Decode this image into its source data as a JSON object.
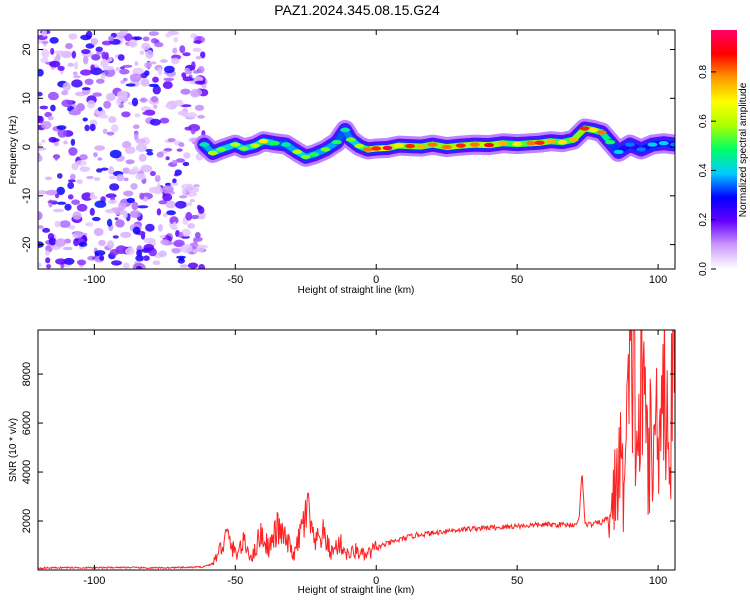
{
  "title": "PAZ1.2024.345.08.15.G24",
  "chart_data": [
    {
      "type": "heatmap",
      "title": "",
      "xlabel": "Height of straight line (km)",
      "ylabel": "Frequency (Hz)",
      "xlim": [
        -120,
        106
      ],
      "ylim": [
        -25,
        24
      ],
      "xticks": [
        -100,
        -50,
        0,
        50,
        100
      ],
      "yticks": [
        -20,
        -10,
        0,
        10,
        20
      ],
      "colorbar": {
        "label": "Normalized spectral amplitude",
        "range": [
          0,
          0.97
        ],
        "ticks": [
          0.0,
          0.2,
          0.4,
          0.6,
          0.8
        ],
        "colors": [
          "#ffffff",
          "#cc99ff",
          "#6600ff",
          "#0000ff",
          "#00ccff",
          "#00ff66",
          "#aaff00",
          "#ffff00",
          "#ff9900",
          "#ff0000",
          "#ff0066"
        ]
      },
      "noise_region": {
        "x": [
          -120,
          -61
        ],
        "y": [
          -25,
          24
        ],
        "amplitude": [
          0.05,
          0.3
        ]
      },
      "ridge": [
        [
          -61,
          0.5,
          0.45
        ],
        [
          -58,
          -1.2,
          0.6
        ],
        [
          -55,
          -0.5,
          0.55
        ],
        [
          -50,
          0.5,
          0.6
        ],
        [
          -47,
          -0.3,
          0.55
        ],
        [
          -43,
          0.3,
          0.6
        ],
        [
          -40,
          1.2,
          0.7
        ],
        [
          -36,
          0.8,
          0.5
        ],
        [
          -32,
          0.5,
          0.45
        ],
        [
          -28,
          -1.0,
          0.6
        ],
        [
          -25,
          -2.0,
          0.55
        ],
        [
          -22,
          -1.5,
          0.5
        ],
        [
          -18,
          -0.5,
          0.55
        ],
        [
          -14,
          1.0,
          0.5
        ],
        [
          -11,
          3.5,
          0.45
        ],
        [
          -9,
          1.5,
          0.55
        ],
        [
          -6,
          0.2,
          0.6
        ],
        [
          -3,
          -0.5,
          0.8
        ],
        [
          0,
          -0.3,
          0.85
        ],
        [
          4,
          -0.2,
          0.95
        ],
        [
          8,
          0.3,
          0.7
        ],
        [
          12,
          0.2,
          0.85
        ],
        [
          16,
          0.1,
          0.75
        ],
        [
          20,
          0.5,
          0.8
        ],
        [
          25,
          0.0,
          0.8
        ],
        [
          30,
          0.3,
          0.85
        ],
        [
          35,
          0.5,
          0.8
        ],
        [
          40,
          0.4,
          0.9
        ],
        [
          45,
          0.8,
          0.75
        ],
        [
          50,
          0.6,
          0.7
        ],
        [
          55,
          0.8,
          0.8
        ],
        [
          58,
          0.9,
          0.85
        ],
        [
          62,
          1.2,
          0.75
        ],
        [
          66,
          1.0,
          0.7
        ],
        [
          70,
          1.5,
          0.75
        ],
        [
          74,
          3.8,
          0.85
        ],
        [
          77,
          3.5,
          0.7
        ],
        [
          80,
          3.0,
          0.8
        ],
        [
          83,
          1.0,
          0.5
        ],
        [
          86,
          -1.0,
          0.4
        ],
        [
          90,
          0.5,
          0.35
        ],
        [
          94,
          -0.5,
          0.35
        ],
        [
          98,
          0.5,
          0.4
        ],
        [
          102,
          0.8,
          0.4
        ],
        [
          106,
          0.5,
          0.35
        ]
      ]
    },
    {
      "type": "line",
      "title": "",
      "xlabel": "Height of straight line (km)",
      "ylabel": "SNR (10 * v/v)",
      "xlim": [
        -120,
        106
      ],
      "ylim": [
        0,
        9800
      ],
      "xticks": [
        -100,
        -50,
        0,
        50,
        100
      ],
      "yticks": [
        2000,
        4000,
        6000,
        8000
      ],
      "color": "#ff2222",
      "x": [
        -120,
        -110,
        -100,
        -90,
        -80,
        -70,
        -62,
        -58,
        -56,
        -53,
        -50,
        -47,
        -44,
        -41,
        -38,
        -35,
        -32,
        -29,
        -26,
        -24,
        -22,
        -19,
        -16,
        -13,
        -10,
        -7,
        -4,
        -1,
        2,
        6,
        10,
        15,
        20,
        25,
        30,
        35,
        40,
        45,
        50,
        55,
        60,
        65,
        70,
        72,
        73,
        74,
        76,
        80,
        82,
        84,
        86,
        88,
        90,
        91,
        92,
        93,
        94,
        96,
        98,
        100,
        102,
        104,
        106
      ],
      "y": [
        80,
        100,
        90,
        110,
        80,
        100,
        120,
        250,
        700,
        1400,
        650,
        1100,
        500,
        1500,
        900,
        1700,
        1200,
        600,
        1900,
        2400,
        1000,
        1500,
        700,
        1100,
        600,
        800,
        550,
        800,
        1000,
        1150,
        1300,
        1450,
        1500,
        1600,
        1650,
        1700,
        1720,
        1750,
        1800,
        1820,
        1850,
        1850,
        1850,
        2000,
        4200,
        1900,
        1850,
        1950,
        2100,
        2600,
        4500,
        3500,
        7500,
        9600,
        6000,
        5000,
        7200,
        6000,
        4200,
        6800,
        8500,
        4500,
        9600
      ]
    }
  ]
}
